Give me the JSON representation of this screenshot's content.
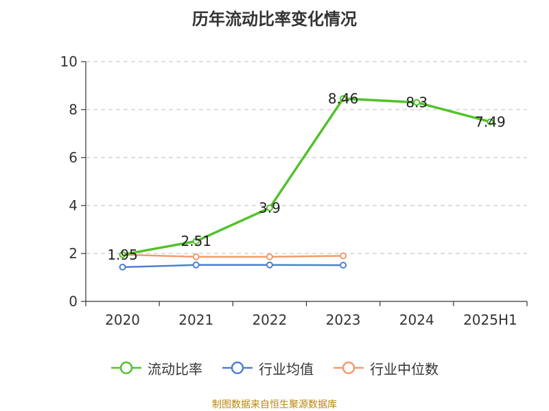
{
  "title": "历年流动比率变化情况",
  "source": "制图数据来自恒生聚源数据库",
  "colors": {
    "grid": "#bdbdbd",
    "axis": "#333333",
    "text": "#333333",
    "source": "#b8860b"
  },
  "chart_data": {
    "type": "line",
    "title": "历年流动比率变化情况",
    "xlabel": "",
    "ylabel": "",
    "categories": [
      "2020",
      "2021",
      "2022",
      "2023",
      "2024",
      "2025H1"
    ],
    "ylim": [
      0,
      10
    ],
    "yticks": [
      0,
      2,
      4,
      6,
      8,
      10
    ],
    "grid": true,
    "legend_position": "bottom",
    "series": [
      {
        "name": "流动比率",
        "color": "#52c22b",
        "width": 3.5,
        "labels": true,
        "values": [
          1.95,
          2.51,
          3.9,
          8.46,
          8.3,
          7.49
        ]
      },
      {
        "name": "行业均值",
        "color": "#4a7fd6",
        "width": 2.5,
        "labels": false,
        "values": [
          1.43,
          1.52,
          1.52,
          1.51,
          null,
          null
        ]
      },
      {
        "name": "行业中位数",
        "color": "#f29a6a",
        "width": 2.5,
        "labels": false,
        "values": [
          1.95,
          1.86,
          1.86,
          1.9,
          null,
          null
        ]
      }
    ]
  }
}
